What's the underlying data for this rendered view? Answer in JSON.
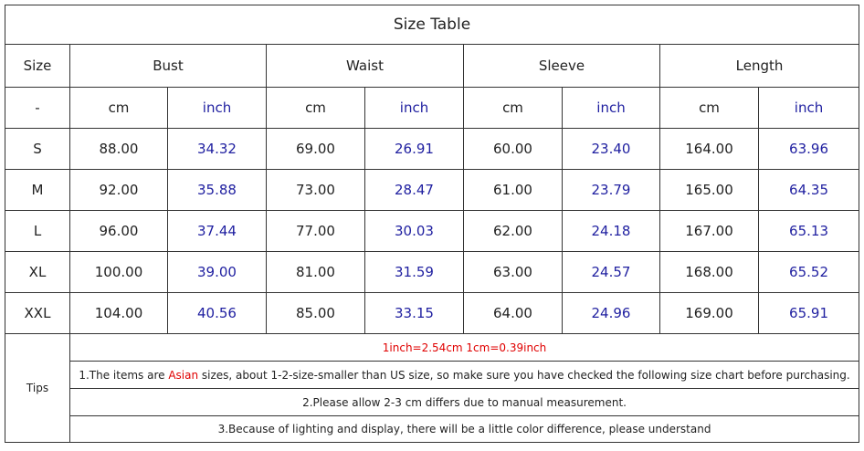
{
  "title": "Size Table",
  "header": [
    "Size",
    "Bust",
    "Waist",
    "Sleeve",
    "Length"
  ],
  "units": [
    "-",
    "cm",
    "inch",
    "cm",
    "inch",
    "cm",
    "inch",
    "cm",
    "inch"
  ],
  "rows": [
    [
      "S",
      "88.00",
      "34.32",
      "69.00",
      "26.91",
      "60.00",
      "23.40",
      "164.00",
      "63.96"
    ],
    [
      "M",
      "92.00",
      "35.88",
      "73.00",
      "28.47",
      "61.00",
      "23.79",
      "165.00",
      "64.35"
    ],
    [
      "L",
      "96.00",
      "37.44",
      "77.00",
      "30.03",
      "62.00",
      "24.18",
      "167.00",
      "65.13"
    ],
    [
      "XL",
      "100.00",
      "39.00",
      "81.00",
      "31.59",
      "63.00",
      "24.57",
      "168.00",
      "65.52"
    ],
    [
      "XXL",
      "104.00",
      "40.56",
      "85.00",
      "33.15",
      "64.00",
      "24.96",
      "169.00",
      "65.91"
    ]
  ],
  "tips_label": "Tips",
  "tips": [
    "1inch=2.54cm 1cm=0.39inch",
    [
      "1.The items are ",
      "Asian",
      " sizes, about 1-2-size-smaller than US size, so make sure you have checked the following size chart before purchasing."
    ],
    "2.Please allow 2-3 cm differs due to manual measurement.",
    "3.Because of lighting and display, there will be a little color difference, please understand"
  ]
}
